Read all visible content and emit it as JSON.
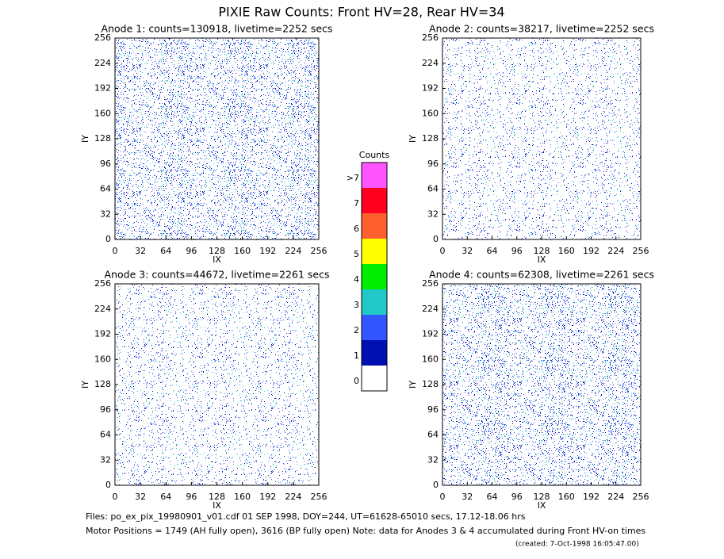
{
  "title": "PIXIE Raw Counts:  Front HV=28, Rear HV=34",
  "chart_data": [
    {
      "type": "heatmap",
      "title": "Anode 1: counts=130918, livetime=2252 secs",
      "xlabel": "IX",
      "ylabel": "IY",
      "xlim": [
        0,
        256
      ],
      "ylim": [
        0,
        256
      ],
      "xticks": [
        0,
        32,
        64,
        96,
        128,
        160,
        192,
        224,
        256
      ],
      "yticks": [
        0,
        32,
        64,
        96,
        128,
        160,
        192,
        224,
        256
      ]
    },
    {
      "type": "heatmap",
      "title": "Anode 2: counts=38217, livetime=2252 secs",
      "xlabel": "IX",
      "ylabel": "IY",
      "xlim": [
        0,
        256
      ],
      "ylim": [
        0,
        256
      ],
      "xticks": [
        0,
        32,
        64,
        96,
        128,
        160,
        192,
        224,
        256
      ],
      "yticks": [
        0,
        32,
        64,
        96,
        128,
        160,
        192,
        224,
        256
      ]
    },
    {
      "type": "heatmap",
      "title": "Anode 3: counts=44672, livetime=2261 secs",
      "xlabel": "IX",
      "ylabel": "IY",
      "xlim": [
        0,
        256
      ],
      "ylim": [
        0,
        256
      ],
      "xticks": [
        0,
        32,
        64,
        96,
        128,
        160,
        192,
        224,
        256
      ],
      "yticks": [
        0,
        32,
        64,
        96,
        128,
        160,
        192,
        224,
        256
      ]
    },
    {
      "type": "heatmap",
      "title": "Anode 4: counts=62308, livetime=2261 secs",
      "xlabel": "IX",
      "ylabel": "IY",
      "xlim": [
        0,
        256
      ],
      "ylim": [
        0,
        256
      ],
      "xticks": [
        0,
        32,
        64,
        96,
        128,
        160,
        192,
        224,
        256
      ],
      "yticks": [
        0,
        32,
        64,
        96,
        128,
        160,
        192,
        224,
        256
      ]
    },
    {
      "type": "colorbar",
      "title": "Counts",
      "categories": [
        "0",
        "1",
        "2",
        "3",
        "4",
        "5",
        "6",
        "7",
        ">7"
      ],
      "colors": [
        "#ffffff",
        "#0010b0",
        "#3355ff",
        "#20c8c8",
        "#00ee00",
        "#ffff00",
        "#ff6030",
        "#ff0020",
        "#ff55ff"
      ]
    }
  ],
  "notes": [
    "Files: po_ex_pix_19980901_v01.cdf    01 SEP 1998, DOY=244, UT=61628-65010 secs, 17.12-18.06 hrs",
    "Motor Positions = 1749 (AH fully open), 3616 (BP fully open)    Note: data for Anodes 3 & 4 accumulated during Front HV-on times",
    "(created:  7-Oct-1998 16:05:47.00)"
  ]
}
